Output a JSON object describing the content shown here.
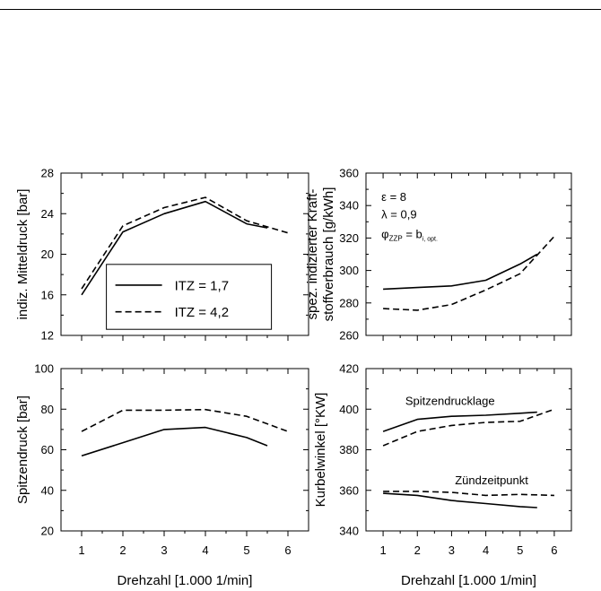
{
  "chart_data": [
    {
      "type": "line",
      "panel": "top-left",
      "ylabel": "indiz. Mitteldruck [bar]",
      "xlabel": "",
      "xlim": [
        0.5,
        6.5
      ],
      "ylim": [
        12,
        28
      ],
      "xticks": [
        1,
        2,
        3,
        4,
        5,
        6
      ],
      "yticks": [
        12,
        16,
        20,
        24,
        28
      ],
      "ytick_labels": [
        "12",
        "16",
        "20",
        "24",
        "28"
      ],
      "show_xtick_labels": false,
      "legend": {
        "placement": "lower-right",
        "entries": [
          {
            "label": "ITZ = 1,7",
            "style": "solid"
          },
          {
            "label": "ITZ = 4,2",
            "style": "dashed"
          }
        ]
      },
      "series": [
        {
          "name": "ITZ = 1,7",
          "style": "solid",
          "x": [
            1,
            2,
            3,
            4,
            5,
            5.5
          ],
          "y": [
            16.0,
            22.2,
            24.0,
            25.2,
            23.0,
            22.6
          ]
        },
        {
          "name": "ITZ = 4,2",
          "style": "dashed",
          "x": [
            1,
            2,
            3,
            4,
            5,
            6
          ],
          "y": [
            16.6,
            22.8,
            24.6,
            25.6,
            23.3,
            22.1
          ]
        }
      ]
    },
    {
      "type": "line",
      "panel": "top-right",
      "ylabel": "spez. indizierter Kraft- stoffverbrauch [g/kWh]",
      "xlabel": "",
      "xlim": [
        0.5,
        6.5
      ],
      "ylim": [
        260,
        360
      ],
      "xticks": [
        1,
        2,
        3,
        4,
        5,
        6
      ],
      "yticks": [
        260,
        280,
        300,
        320,
        340,
        360
      ],
      "ytick_labels": [
        "260",
        "280",
        "300",
        "320",
        "340",
        "360"
      ],
      "show_xtick_labels": false,
      "annotations": [
        {
          "text": "ε = 8"
        },
        {
          "text": "λ = 0,9"
        },
        {
          "text": "φ",
          "sub": "ZZP",
          "rest": " = b",
          "sub2": "i, opt."
        }
      ],
      "series": [
        {
          "style": "solid",
          "x": [
            1,
            2,
            3,
            4,
            5,
            5.5
          ],
          "y": [
            288.5,
            289.5,
            290.5,
            294.0,
            304.0,
            310.0
          ]
        },
        {
          "style": "dashed",
          "x": [
            1,
            2,
            3,
            4,
            5,
            6
          ],
          "y": [
            276.5,
            275.5,
            279.0,
            288.0,
            298.0,
            321.0
          ]
        }
      ]
    },
    {
      "type": "line",
      "panel": "bottom-left",
      "ylabel": "Spitzendruck [bar]",
      "xlabel": "Drehzahl [1.000 1/min]",
      "xlim": [
        0.5,
        6.5
      ],
      "ylim": [
        20,
        100
      ],
      "xticks": [
        1,
        2,
        3,
        4,
        5,
        6
      ],
      "xtick_labels": [
        "1",
        "2",
        "3",
        "4",
        "5",
        "6"
      ],
      "yticks": [
        20,
        40,
        60,
        80,
        100
      ],
      "ytick_labels": [
        "20",
        "40",
        "60",
        "80",
        "100"
      ],
      "show_xtick_labels": true,
      "series": [
        {
          "style": "solid",
          "x": [
            1,
            2,
            3,
            4,
            5,
            5.5
          ],
          "y": [
            57.0,
            63.5,
            70.0,
            71.0,
            66.0,
            62.0
          ]
        },
        {
          "style": "dashed",
          "x": [
            1,
            2,
            3,
            4,
            5,
            6
          ],
          "y": [
            69.0,
            79.5,
            79.5,
            79.8,
            76.5,
            69.0
          ]
        }
      ]
    },
    {
      "type": "line",
      "panel": "bottom-right",
      "ylabel": "Kurbelwinkel [°KW]",
      "xlabel": "Drehzahl [1.000 1/min]",
      "xlim": [
        0.5,
        6.5
      ],
      "ylim": [
        340,
        420
      ],
      "xticks": [
        1,
        2,
        3,
        4,
        5,
        6
      ],
      "xtick_labels": [
        "1",
        "2",
        "3",
        "4",
        "5",
        "6"
      ],
      "yticks": [
        340,
        360,
        380,
        400,
        420
      ],
      "ytick_labels": [
        "340",
        "360",
        "380",
        "400",
        "420"
      ],
      "show_xtick_labels": true,
      "annotations": [
        {
          "text": "Spitzendrucklage"
        },
        {
          "text": "Zündzeitpunkt"
        }
      ],
      "series": [
        {
          "style": "solid",
          "x": [
            1,
            2,
            3,
            4,
            5,
            5.5
          ],
          "y": [
            389.0,
            395.0,
            396.5,
            397.0,
            398.0,
            398.5
          ]
        },
        {
          "style": "dashed",
          "x": [
            1,
            2,
            3,
            4,
            5,
            6
          ],
          "y": [
            382.0,
            389.0,
            392.0,
            393.5,
            394.0,
            400.0
          ]
        },
        {
          "style": "solid",
          "x": [
            1,
            2,
            3,
            4,
            5,
            5.5
          ],
          "y": [
            358.5,
            357.5,
            355.0,
            353.5,
            352.0,
            351.5
          ]
        },
        {
          "style": "dashed",
          "x": [
            1,
            2,
            3,
            4,
            5,
            6
          ],
          "y": [
            359.5,
            359.5,
            359.0,
            357.5,
            358.0,
            357.5
          ]
        }
      ]
    }
  ]
}
